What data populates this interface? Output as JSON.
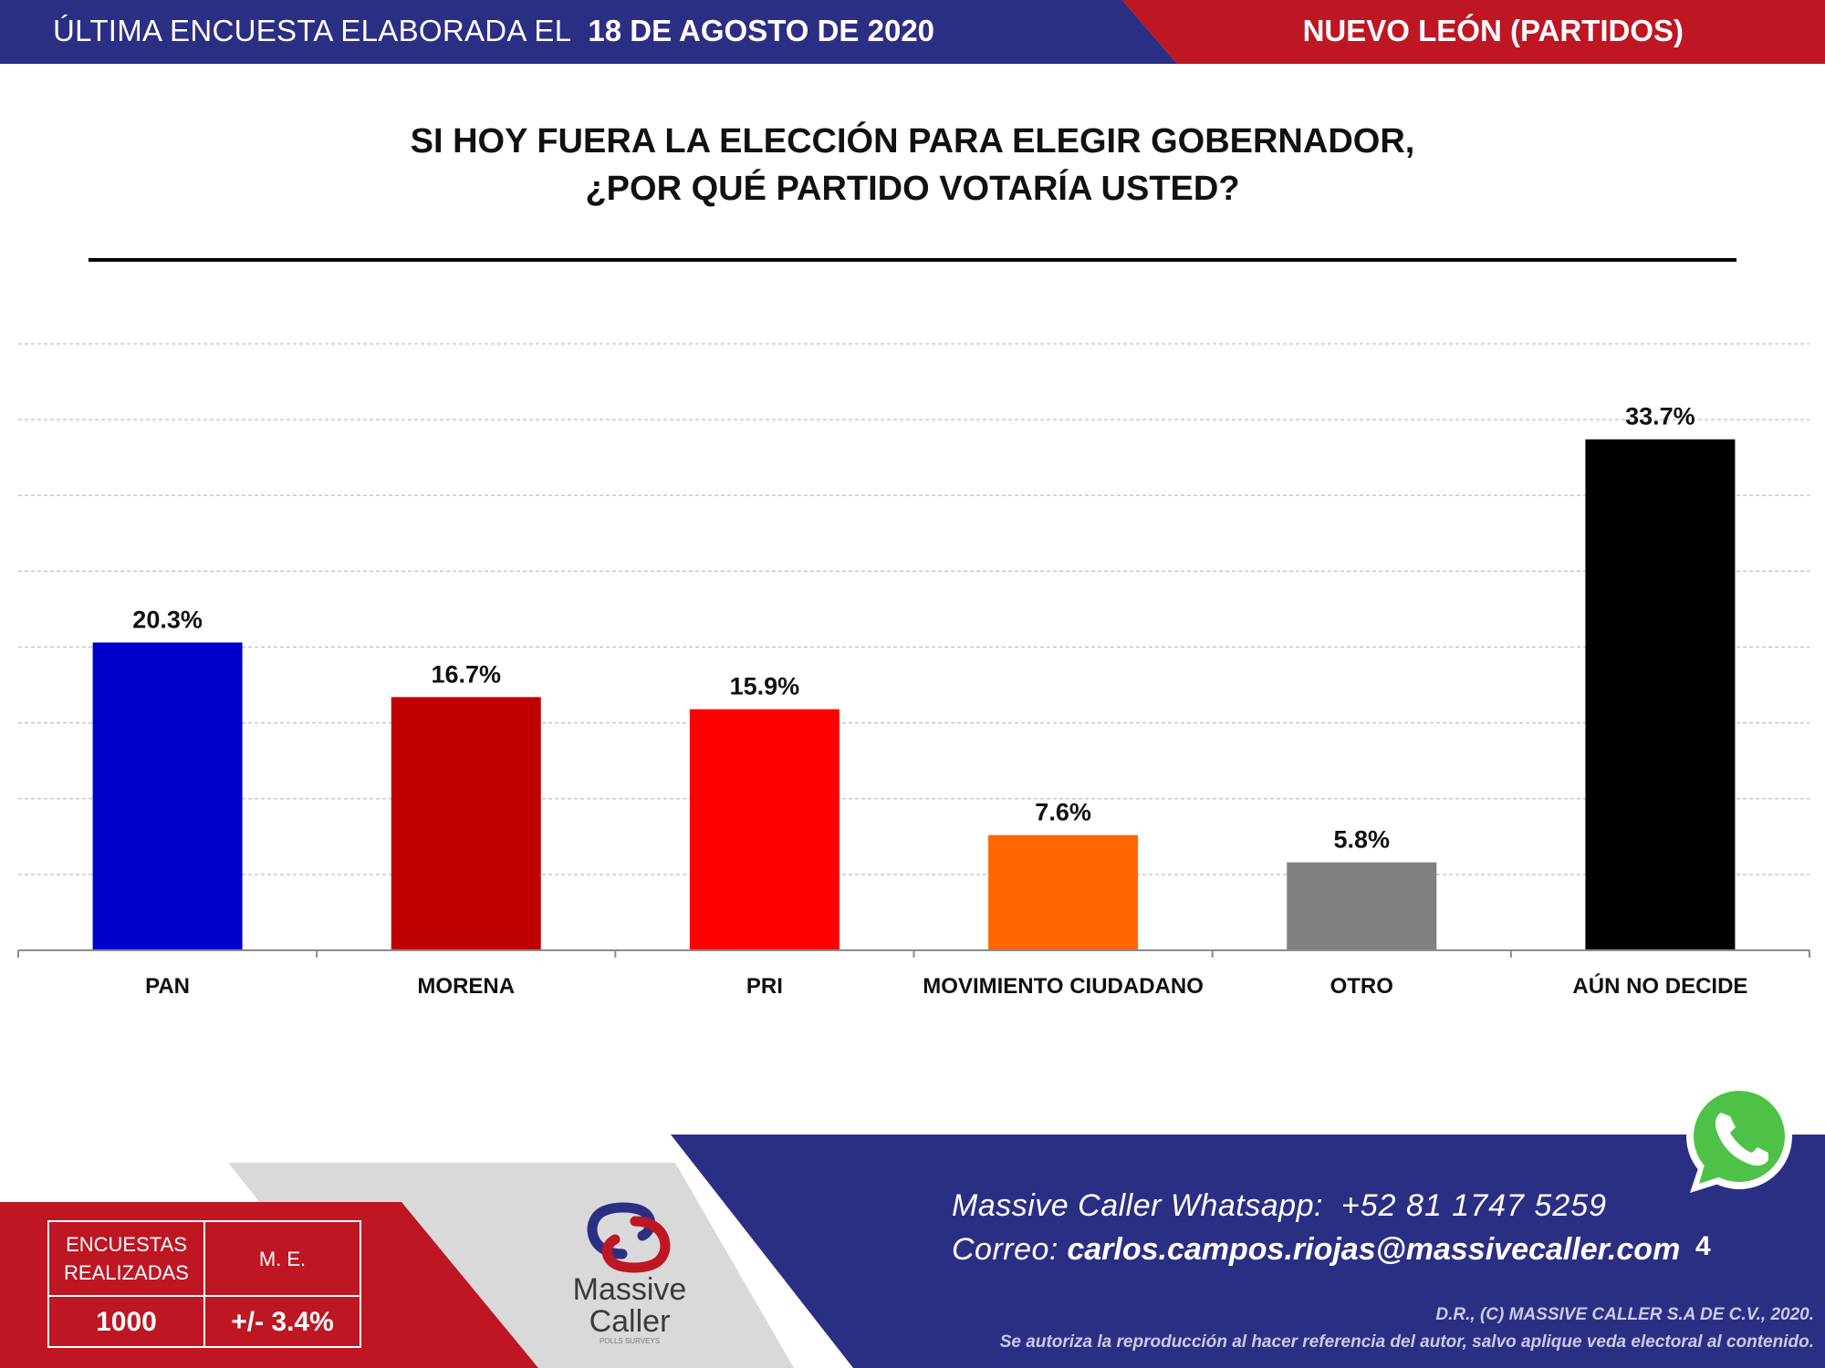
{
  "header": {
    "label": "ÚLTIMA ENCUESTA ELABORADA EL",
    "date": "18 DE AGOSTO DE 2020",
    "region": "NUEVO LEÓN (PARTIDOS)"
  },
  "question": {
    "line1": "SI HOY FUERA LA ELECCIÓN PARA ELEGIR GOBERNADOR,",
    "line2": "¿POR QUÉ PARTIDO VOTARÍA USTED?"
  },
  "chart_data": {
    "type": "bar",
    "title": "SI HOY FUERA LA ELECCIÓN PARA ELEGIR GOBERNADOR, ¿POR QUÉ PARTIDO VOTARÍA USTED?",
    "categories": [
      "PAN",
      "MORENA",
      "PRI",
      "MOVIMIENTO CIUDADANO",
      "OTRO",
      "AÚN NO DECIDE"
    ],
    "values": [
      20.3,
      16.7,
      15.9,
      7.6,
      5.8,
      33.7
    ],
    "value_labels": [
      "20.3%",
      "16.7%",
      "15.9%",
      "7.6%",
      "5.8%",
      "33.7%"
    ],
    "colors": [
      "#0000CC",
      "#C00000",
      "#FF0000",
      "#FF6600",
      "#808080",
      "#000000"
    ],
    "xlabel": "",
    "ylabel": "",
    "ylim": [
      0,
      40
    ],
    "grid": true,
    "legend": "none"
  },
  "stats": {
    "surveys_label": "ENCUESTAS REALIZADAS",
    "surveys_value": "1000",
    "margin_label": "M. E.",
    "margin_value": "+/- 3.4%"
  },
  "brand": {
    "name_line1": "Massive",
    "name_line2": "Caller",
    "tagline": "POLLS SURVEYS"
  },
  "contact": {
    "whatsapp_label": "Massive Caller Whatsapp:",
    "whatsapp_number": "+52 81 1747 5259",
    "email_label": "Correo:",
    "email": "carlos.campos.riojas@massivecaller.com"
  },
  "page_number": "4",
  "copyright": {
    "line1": "D.R., (C) MASSIVE CALLER S.A DE C.V., 2020.",
    "line2": "Se autoriza la reproducción al hacer referencia del autor, salvo aplique veda electoral al contenido."
  },
  "colors": {
    "navy": "#2B2F84",
    "red": "#BE1622",
    "gray": "#D9D9D9",
    "whatsapp": "#4DC247"
  }
}
